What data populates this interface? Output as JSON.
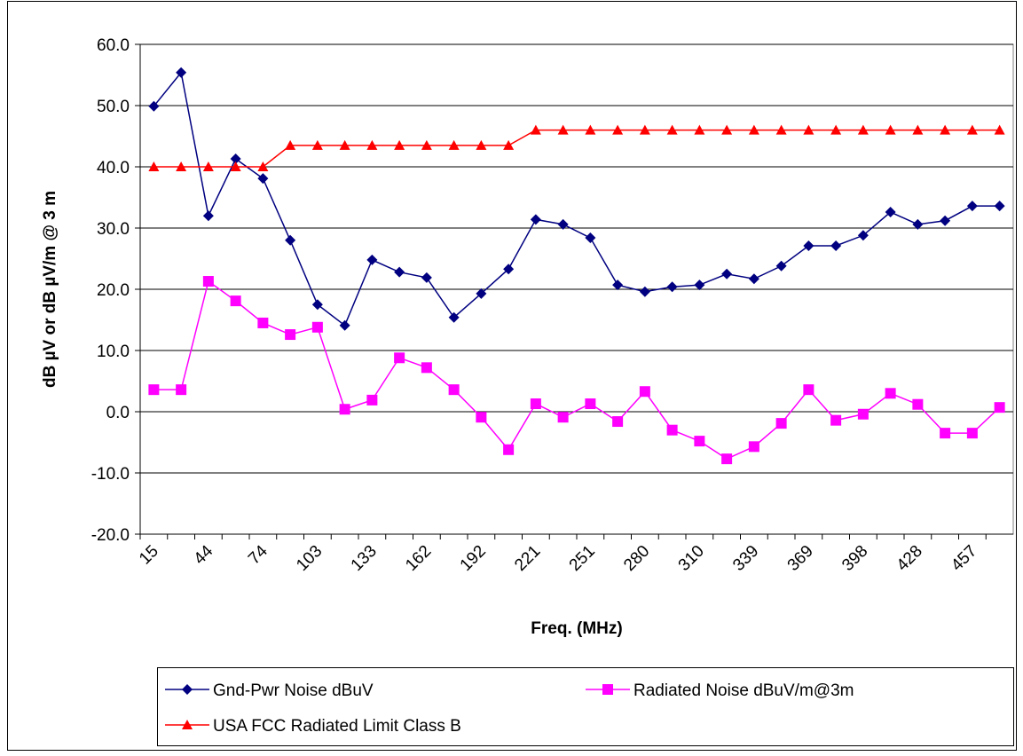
{
  "chart_data": {
    "type": "line",
    "x_label": "Freq. (MHz)",
    "y_label": "dB µV or dB µV/m @ 3 m",
    "categories": [
      "15",
      null,
      "44",
      null,
      "74",
      null,
      "103",
      null,
      "133",
      null,
      "162",
      null,
      "192",
      null,
      "221",
      null,
      "251",
      null,
      "280",
      null,
      "310",
      null,
      "339",
      null,
      "369",
      null,
      "398",
      null,
      "428",
      null,
      "457",
      null
    ],
    "ylim": [
      -20,
      60
    ],
    "yticks": [
      {
        "value": -20,
        "label": "-20.0"
      },
      {
        "value": -10,
        "label": "-10.0"
      },
      {
        "value": 0,
        "label": "0.0"
      },
      {
        "value": 10,
        "label": "10.0"
      },
      {
        "value": 20,
        "label": "20.0"
      },
      {
        "value": 30,
        "label": "30.0"
      },
      {
        "value": 40,
        "label": "40.0"
      },
      {
        "value": 50,
        "label": "50.0"
      },
      {
        "value": 60,
        "label": "60.0"
      }
    ],
    "grid": true,
    "series": [
      {
        "name": "Gnd-Pwr Noise dBuV",
        "color": "#000080",
        "marker": "diamond",
        "values": [
          49.9,
          55.4,
          32.0,
          41.3,
          38.1,
          28.0,
          17.5,
          14.1,
          24.8,
          22.8,
          21.9,
          15.4,
          19.3,
          23.3,
          31.4,
          30.6,
          28.4,
          20.7,
          19.6,
          20.4,
          20.7,
          22.5,
          21.7,
          23.8,
          27.1,
          27.1,
          28.8,
          32.6,
          30.6,
          31.2,
          33.6,
          33.6
        ]
      },
      {
        "name": "Radiated Noise dBuV/m@3m",
        "color": "#ff00ff",
        "marker": "square",
        "values": [
          3.6,
          3.6,
          21.3,
          18.1,
          14.5,
          12.6,
          13.8,
          0.4,
          1.9,
          8.8,
          7.2,
          3.6,
          -0.9,
          -6.2,
          1.3,
          -0.9,
          1.3,
          -1.6,
          3.3,
          -3.0,
          -4.8,
          -7.7,
          -5.7,
          -1.9,
          3.6,
          -1.4,
          -0.4,
          3.0,
          1.2,
          -3.5,
          -3.5,
          0.7
        ]
      },
      {
        "name": "USA FCC Radiated Limit Class B",
        "color": "#ff0000",
        "marker": "triangle",
        "values": [
          40,
          40,
          40,
          40,
          40,
          43.5,
          43.5,
          43.5,
          43.5,
          43.5,
          43.5,
          43.5,
          43.5,
          43.5,
          46,
          46,
          46,
          46,
          46,
          46,
          46,
          46,
          46,
          46,
          46,
          46,
          46,
          46,
          46,
          46,
          46,
          46
        ]
      }
    ]
  }
}
